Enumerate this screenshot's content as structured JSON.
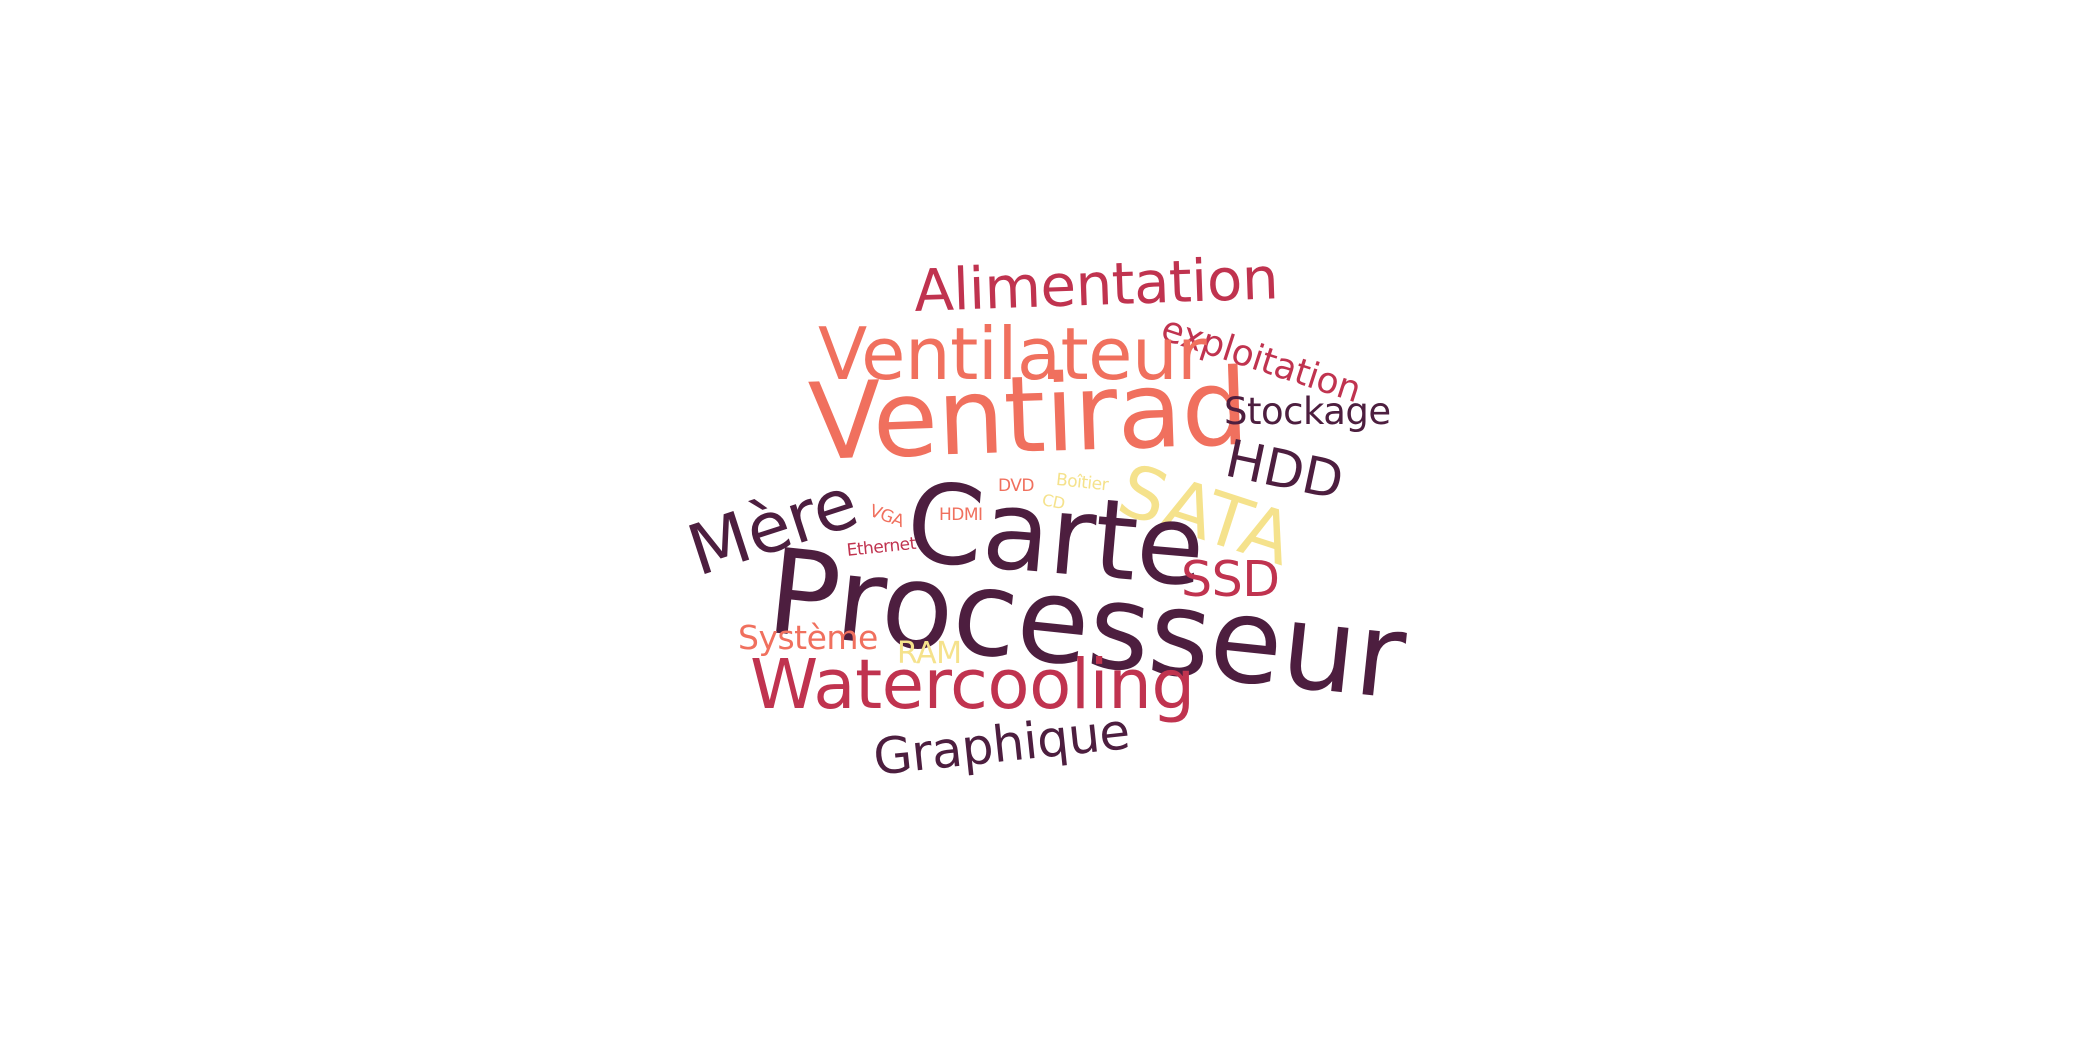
{
  "palette": {
    "dark": "#4d1e3f",
    "coral": "#f0705e",
    "red": "#c0334f",
    "yellow": "#f5e28c"
  },
  "words": {
    "alimentation": "Alimentation",
    "exploitation": "exploitation",
    "ventilateur": "Ventilateur",
    "ventirad": "Ventirad",
    "stockage": "Stockage",
    "hdd": "HDD",
    "mere": "Mère",
    "dvd": "DVD",
    "boitier": "Boîtier",
    "cd": "CD",
    "vga": "VGA",
    "hdmi": "HDMI",
    "sata": "SATA",
    "carte": "Carte",
    "ethernet": "Ethernet",
    "ssd": "SSD",
    "processeur": "Processeur",
    "systeme": "Système",
    "ram": "RAM",
    "watercooling": "Watercooling",
    "graphique": "Graphique"
  }
}
